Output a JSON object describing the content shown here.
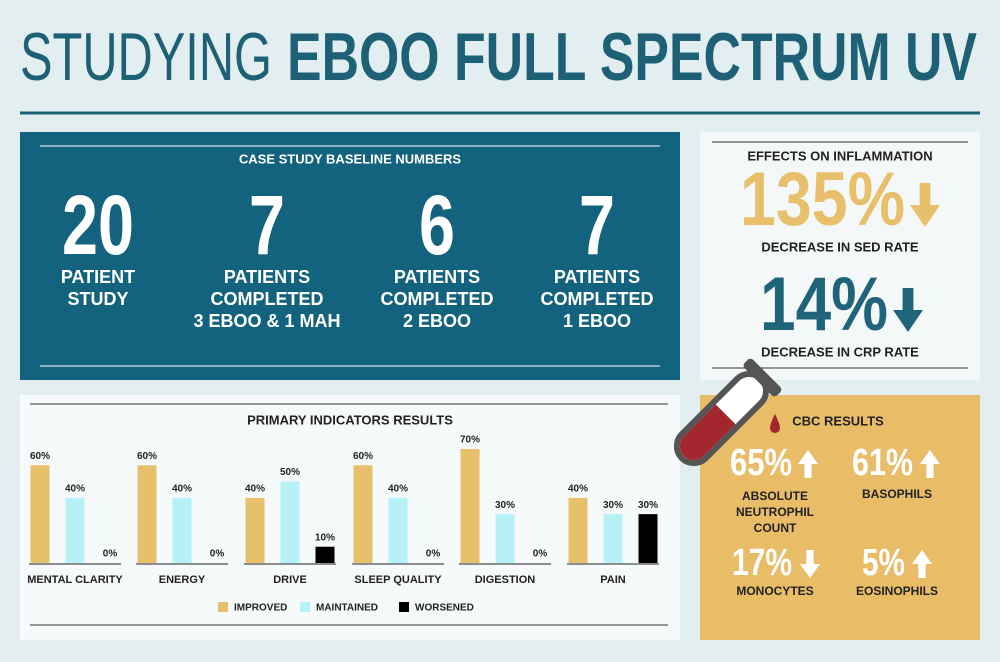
{
  "header": {
    "title_light": "STUDYING",
    "title_bold": "EBOO FULL SPECTRUM UV"
  },
  "baseline": {
    "title": "CASE STUDY BASELINE NUMBERS",
    "items": [
      {
        "number": "20",
        "lines": [
          "PATIENT",
          "STUDY"
        ]
      },
      {
        "number": "7",
        "lines": [
          "PATIENTS",
          "COMPLETED",
          "3 EBOO & 1 MAH"
        ]
      },
      {
        "number": "6",
        "lines": [
          "PATIENTS",
          "COMPLETED",
          "2 EBOO"
        ]
      },
      {
        "number": "7",
        "lines": [
          "PATIENTS",
          "COMPLETED",
          "1 EBOO"
        ]
      }
    ]
  },
  "inflammation": {
    "title": "EFFECTS ON INFLAMMATION",
    "items": [
      {
        "value": "135%",
        "label": "DECREASE IN SED RATE"
      },
      {
        "value": "14%",
        "label": "DECREASE IN CRP RATE"
      }
    ]
  },
  "cbc": {
    "title": "CBC RESULTS",
    "items": [
      {
        "value": "65%",
        "lines": [
          "ABSOLUTE",
          "NEUTROPHIL",
          "COUNT"
        ]
      },
      {
        "value": "61%",
        "lines": [
          "BASOPHILS"
        ]
      },
      {
        "value": "17%",
        "lines": [
          "MONOCYTES"
        ]
      },
      {
        "value": "5%",
        "lines": [
          "EOSINOPHILS"
        ]
      }
    ]
  },
  "chart_data": {
    "type": "bar",
    "title": "PRIMARY INDICATORS RESULTS",
    "categories": [
      "MENTAL CLARITY",
      "ENERGY",
      "DRIVE",
      "SLEEP QUALITY",
      "DIGESTION",
      "PAIN"
    ],
    "series": [
      {
        "name": "IMPROVED",
        "color": "#e8c06b",
        "values": [
          60,
          60,
          40,
          60,
          70,
          40
        ],
        "value_labels": [
          "60%",
          "60%",
          "40%",
          "60%",
          "70%",
          "40%"
        ]
      },
      {
        "name": "MAINTAINED",
        "color": "#b6f1f7",
        "values": [
          40,
          40,
          50,
          40,
          30,
          30
        ],
        "value_labels": [
          "40%",
          "40%",
          "50%",
          "40%",
          "30%",
          "30%"
        ]
      },
      {
        "name": "WORSENED",
        "color": "#000000",
        "values": [
          0,
          0,
          10,
          0,
          0,
          30
        ],
        "value_labels": [
          "0%",
          "0%",
          "10%",
          "0%",
          "0%",
          "30%"
        ]
      }
    ],
    "ylim": [
      0,
      70
    ]
  }
}
